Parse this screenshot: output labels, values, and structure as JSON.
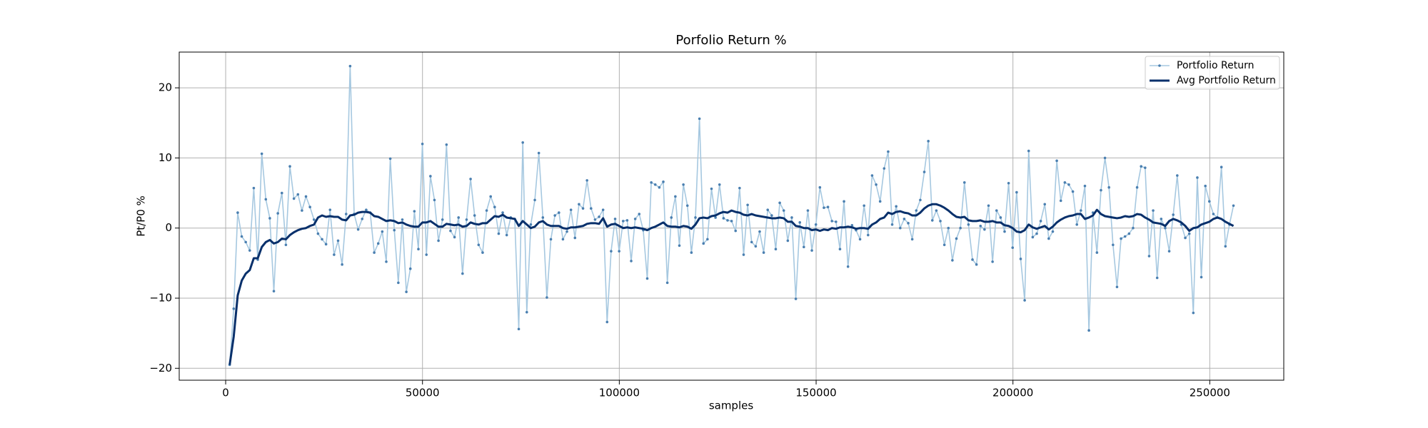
{
  "chart_data": {
    "type": "line",
    "title": "Porfolio Return %",
    "xlabel": "samples",
    "ylabel": "Pt/P0 %",
    "x": [
      1020,
      2040,
      3060,
      4080,
      5100,
      6120,
      7140,
      8160,
      9180,
      10200,
      11220,
      12240,
      13260,
      14280,
      15300,
      16320,
      17340,
      18360,
      19380,
      20400,
      21420,
      22440,
      23460,
      24480,
      25500,
      26520,
      27540,
      28560,
      29580,
      30600,
      31620,
      32640,
      33660,
      34680,
      35700,
      36720,
      37740,
      38760,
      39780,
      40800,
      41820,
      42840,
      43860,
      44880,
      45900,
      46920,
      47940,
      48960,
      49980,
      51000,
      52020,
      53040,
      54060,
      55080,
      56100,
      57120,
      58140,
      59160,
      60180,
      61200,
      62220,
      63240,
      64260,
      65280,
      66300,
      67320,
      68340,
      69360,
      70380,
      71400,
      72420,
      73440,
      74460,
      75480,
      76500,
      77520,
      78540,
      79560,
      80580,
      81600,
      82620,
      83640,
      84660,
      85680,
      86700,
      87720,
      88740,
      89760,
      90780,
      91800,
      92820,
      93840,
      94860,
      95880,
      96900,
      97920,
      98940,
      99960,
      100980,
      102000,
      103020,
      104040,
      105060,
      106080,
      107100,
      108120,
      109140,
      110160,
      111180,
      112200,
      113220,
      114240,
      115260,
      116280,
      117300,
      118320,
      119340,
      120360,
      121380,
      122400,
      123420,
      124440,
      125460,
      126480,
      127500,
      128520,
      129540,
      130560,
      131580,
      132600,
      133620,
      134640,
      135660,
      136680,
      137700,
      138720,
      139740,
      140760,
      141780,
      142800,
      143820,
      144840,
      145860,
      146880,
      147900,
      148920,
      149940,
      150960,
      151980,
      153000,
      154020,
      155040,
      156060,
      157080,
      158100,
      159120,
      160140,
      161160,
      162180,
      163200,
      164220,
      165240,
      166260,
      167280,
      168300,
      169320,
      170340,
      171360,
      172380,
      173400,
      174420,
      175440,
      176460,
      177480,
      178500,
      179520,
      180540,
      181560,
      182580,
      183600,
      184620,
      185640,
      186660,
      187680,
      188700,
      189720,
      190740,
      191760,
      192780,
      193800,
      194820,
      195840,
      196860,
      197880,
      198900,
      199920,
      200940,
      201960,
      202980,
      204000,
      205020,
      206040,
      207060,
      208080,
      209100,
      210120,
      211140,
      212160,
      213180,
      214200,
      215220,
      216240,
      217260,
      218280,
      219300,
      220320,
      221340,
      222360,
      223380,
      224400,
      225420,
      226440,
      227460,
      228480,
      229500,
      230520,
      231540,
      232560,
      233580,
      234600,
      235620,
      236640,
      237660,
      238680,
      239700,
      240720,
      241740,
      242760,
      243780,
      244800,
      245820,
      246840,
      247860,
      248880,
      249900,
      250920,
      251940,
      252960,
      253980,
      255000,
      256020
    ],
    "series": [
      {
        "name": "Portfolio Return",
        "color": "#a6c8e0",
        "marker_color": "#4a7fb0",
        "markers": true,
        "values": [
          -19.5,
          -11.5,
          2.2,
          -1.2,
          -2,
          -3.2,
          5.7,
          -4.5,
          10.6,
          4.1,
          1.4,
          -9,
          2.1,
          5,
          -2.4,
          8.8,
          4.2,
          4.8,
          2.5,
          4.5,
          3,
          1.2,
          -0.8,
          -1.6,
          -2.3,
          2.6,
          -3.8,
          -1.8,
          -5.2,
          2,
          23.1,
          2,
          -0.2,
          1.3,
          2.6,
          2.2,
          -3.5,
          -2.2,
          -0.5,
          -4.8,
          9.9,
          -0.3,
          -7.8,
          1.2,
          -9.1,
          -5.8,
          2.4,
          -3,
          12,
          -3.8,
          7.4,
          4,
          -1.8,
          1.2,
          11.9,
          -0.4,
          -1.3,
          1.5,
          -6.5,
          1.2,
          7,
          1.8,
          -2.4,
          -3.5,
          2.5,
          4.5,
          3,
          -0.8,
          2.2,
          -1,
          1.5,
          1.3,
          -14.4,
          12.2,
          -12,
          0.5,
          4,
          10.7,
          1.5,
          -9.9,
          -1.6,
          1.8,
          2.2,
          -1.6,
          -0.5,
          2.6,
          -1.4,
          3.4,
          2.8,
          6.8,
          2.8,
          1.2,
          1.6,
          2.6,
          -13.4,
          -3.3,
          1.3,
          -3.3,
          1,
          1.1,
          -4.7,
          1.3,
          2,
          -0.3,
          -7.2,
          6.5,
          6.2,
          5.8,
          6.6,
          -7.8,
          1.5,
          4.5,
          -2.5,
          6.2,
          3.2,
          -3.5,
          1.5,
          15.6,
          -2.2,
          -1.6,
          5.6,
          1.5,
          6.2,
          1.4,
          1.1,
          1,
          -0.4,
          5.7,
          -3.8,
          3.3,
          -2,
          -2.6,
          -0.5,
          -3.5,
          2.6,
          1.8,
          -3,
          3.6,
          2.5,
          -1.8,
          1.5,
          -10.1,
          0.8,
          -2.7,
          2.5,
          -3.2,
          0.5,
          5.8,
          2.9,
          3,
          1,
          0.9,
          -3,
          3.8,
          -5.5,
          0.4,
          -0.3,
          -1.6,
          3.2,
          -1,
          7.5,
          6.2,
          3.8,
          8.5,
          10.9,
          0.5,
          3.1,
          0,
          1.3,
          0.7,
          -1.6,
          2.5,
          4,
          8,
          12.4,
          1.1,
          2.5,
          1,
          -2.4,
          0,
          -4.6,
          -1.5,
          0,
          6.5,
          0.5,
          -4.5,
          -5.2,
          0.3,
          -0.2,
          3.2,
          -4.8,
          2.5,
          1.5,
          -0.5,
          6.4,
          -2.8,
          5.1,
          -4.4,
          -10.3,
          11,
          -1.3,
          -0.8,
          1,
          3.4,
          -1.5,
          -0.5,
          9.6,
          3.9,
          6.5,
          6.2,
          5.2,
          0.5,
          2.5,
          6,
          -14.6,
          2.2,
          -3.5,
          5.4,
          10,
          5.8,
          -2.4,
          -8.4,
          -1.5,
          -1.2,
          -0.8,
          0,
          5.8,
          8.8,
          8.6,
          -4,
          2.5,
          -7.1,
          1.3,
          0,
          -3.3,
          1.9,
          7.5,
          0.5,
          -1.4,
          -0.8,
          -12.1,
          7.2,
          -7,
          6,
          3.8,
          2,
          1.5,
          8.7,
          -2.6,
          0.5,
          3.2
        ]
      },
      {
        "name": "Avg Portfolio Return",
        "color": "#08306b",
        "markers": false,
        "values": [
          -19.5,
          -15.5,
          -9.6,
          -7.5,
          -6.5,
          -6,
          -4.3,
          -4.3,
          -2.7,
          -2,
          -1.7,
          -2.2,
          -2,
          -1.5,
          -1.6,
          -1,
          -0.6,
          -0.3,
          -0.1,
          0,
          0.3,
          0.5,
          1.5,
          1.8,
          1.6,
          1.7,
          1.6,
          1.6,
          1.2,
          1.1,
          1.8,
          1.9,
          2.2,
          2.3,
          2.3,
          2.2,
          1.7,
          1.6,
          1.3,
          1,
          1.1,
          1,
          0.7,
          0.8,
          0.5,
          0.3,
          0.2,
          0.2,
          0.8,
          0.8,
          1,
          0.6,
          0.2,
          0.2,
          0.6,
          0.5,
          0.4,
          0.5,
          0.2,
          0.3,
          0.8,
          0.6,
          0.5,
          0.7,
          0.7,
          1.2,
          1.7,
          1.6,
          1.9,
          1.5,
          1.4,
          1.3,
          0.3,
          1,
          0.5,
          0,
          0.2,
          0.8,
          1,
          0.5,
          0.3,
          0.3,
          0.3,
          0,
          -0.1,
          0.1,
          0.1,
          0.2,
          0.3,
          0.6,
          0.7,
          0.7,
          0.6,
          1.4,
          0.2,
          0.5,
          0.6,
          0.3,
          0,
          0.1,
          0,
          0.1,
          0,
          -0.1,
          -0.3,
          0,
          0.2,
          0.5,
          0.8,
          0.3,
          0.2,
          0.2,
          0.1,
          0.3,
          0.2,
          -0.1,
          0.5,
          1.4,
          1.5,
          1.4,
          1.7,
          1.8,
          2.1,
          2.3,
          2.2,
          2.5,
          2.3,
          2.2,
          1.9,
          1.8,
          2,
          1.8,
          1.7,
          1.6,
          1.5,
          1.4,
          1.4,
          1.5,
          1.4,
          0.9,
          0.9,
          0.3,
          0.2,
          0,
          0,
          -0.3,
          -0.2,
          -0.4,
          -0.2,
          -0.3,
          0,
          -0.1,
          0.1,
          0.1,
          0.2,
          0.1,
          -0.1,
          0,
          0,
          -0.1,
          0.5,
          0.8,
          1.3,
          1.5,
          2.2,
          2,
          2.3,
          2.4,
          2.2,
          2.1,
          1.8,
          1.8,
          2.2,
          2.8,
          3.2,
          3.4,
          3.4,
          3.2,
          2.9,
          2.5,
          2,
          1.6,
          1.5,
          1.6,
          1.1,
          1,
          1,
          1.1,
          0.9,
          0.9,
          1,
          0.8,
          0.8,
          0.4,
          0.3,
          0,
          -0.5,
          -0.6,
          -0.3,
          0.5,
          0.1,
          -0.1,
          0.1,
          0.3,
          -0.2,
          0.2,
          0.8,
          1.2,
          1.5,
          1.7,
          1.8,
          2,
          2,
          1.3,
          1.5,
          1.8,
          2.6,
          2,
          1.7,
          1.6,
          1.5,
          1.4,
          1.5,
          1.7,
          1.6,
          1.7,
          2,
          1.9,
          1.5,
          1.2,
          0.8,
          0.7,
          0.6,
          0.3,
          1,
          1.3,
          1.1,
          0.8,
          0.3,
          -0.4,
          0,
          0.1,
          0.5,
          0.7,
          0.9,
          1.3,
          1.5,
          1.3,
          0.9,
          0.6,
          0.3
        ]
      }
    ],
    "xlim": [
      -11800,
      268800
    ],
    "ylim": [
      -21.7,
      25.1
    ],
    "xticks": [
      0,
      50000,
      100000,
      150000,
      200000,
      250000
    ],
    "yticks": [
      {
        "value": -20,
        "label": "−20"
      },
      {
        "value": -10,
        "label": "−10"
      },
      0,
      10,
      20
    ],
    "grid": true,
    "legend": "upper right"
  }
}
